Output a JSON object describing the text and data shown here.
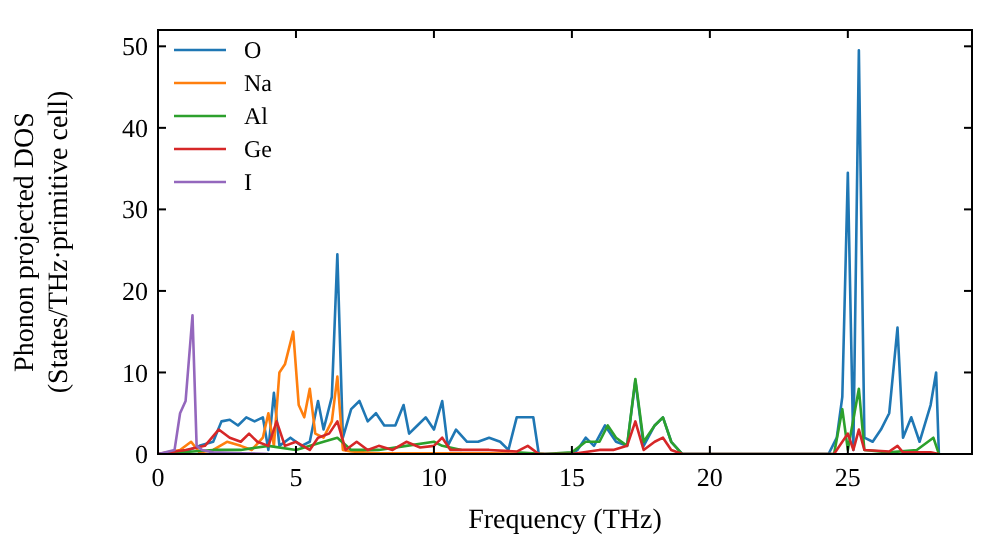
{
  "chart_data": {
    "type": "line",
    "xlabel": "Frequency (THz)",
    "ylabel": "Phonon projected DOS\n(States/THz·primitive cell)",
    "xlim": [
      0,
      29.5
    ],
    "ylim": [
      0,
      52
    ],
    "xticks": [
      0,
      5,
      10,
      15,
      20,
      25
    ],
    "yticks": [
      0,
      10,
      20,
      30,
      40,
      50
    ],
    "legend": "top left",
    "grid": false,
    "series": [
      {
        "name": "O",
        "color": "#1f77b4",
        "x": [
          0,
          1,
          1.5,
          2,
          2.3,
          2.6,
          2.9,
          3.2,
          3.5,
          3.8,
          4.0,
          4.2,
          4.4,
          4.8,
          5.2,
          5.5,
          5.8,
          6.0,
          6.3,
          6.5,
          6.7,
          7.0,
          7.3,
          7.6,
          7.9,
          8.2,
          8.6,
          8.9,
          9.1,
          9.4,
          9.7,
          10.0,
          10.3,
          10.5,
          10.8,
          11.2,
          11.6,
          12.0,
          12.4,
          12.7,
          13.0,
          13.3,
          13.6,
          13.8,
          15.0,
          15.2,
          15.5,
          15.8,
          16.2,
          16.6,
          17.0,
          17.3,
          17.6,
          18.0,
          18.3,
          18.6,
          19.0,
          24.3,
          24.6,
          24.8,
          25.0,
          25.2,
          25.4,
          25.6,
          25.9,
          26.2,
          26.5,
          26.8,
          27.0,
          27.3,
          27.6,
          28.0,
          28.2,
          28.3
        ],
        "values": [
          0,
          0.3,
          1,
          1.5,
          4,
          4.2,
          3.5,
          4.5,
          4,
          4.5,
          0.5,
          7.5,
          1,
          2,
          1,
          1.5,
          6.5,
          3,
          7,
          24.5,
          2,
          5.5,
          6.5,
          4,
          5,
          3.5,
          3.5,
          6,
          2.5,
          3.5,
          4.5,
          3,
          6.5,
          1,
          3,
          1.5,
          1.5,
          2,
          1.5,
          0.5,
          4.5,
          4.5,
          4.5,
          0,
          0,
          0.5,
          2,
          1,
          3.5,
          1.5,
          1,
          9,
          1,
          3.5,
          4.5,
          1.5,
          0,
          0,
          2,
          7,
          34.5,
          0.5,
          49.5,
          2,
          1.5,
          3,
          5,
          15.5,
          2,
          4.5,
          1.5,
          6,
          10,
          0
        ]
      },
      {
        "name": "Na",
        "color": "#ff7f0e",
        "x": [
          0,
          0.8,
          1.2,
          1.5,
          2,
          2.5,
          3,
          3.4,
          3.8,
          4.0,
          4.2,
          4.4,
          4.6,
          4.9,
          5.1,
          5.3,
          5.5,
          5.7,
          6.0,
          6.3,
          6.5,
          6.7,
          7,
          8,
          10,
          12,
          14
        ],
        "values": [
          0,
          0.5,
          1.5,
          0.2,
          0.5,
          1.5,
          1,
          0.5,
          2,
          5,
          1,
          10,
          11,
          15,
          6,
          4.5,
          8,
          2.5,
          2,
          4,
          9.5,
          0.5,
          0.3,
          0.1,
          0.1,
          0.1,
          0
        ]
      },
      {
        "name": "Al",
        "color": "#2ca02c",
        "x": [
          0,
          2,
          3,
          4,
          5,
          6,
          6.5,
          7,
          8,
          9,
          10,
          10.3,
          11,
          12,
          13,
          14,
          15,
          15.5,
          16,
          16.3,
          16.6,
          17.0,
          17.3,
          17.6,
          18.0,
          18.3,
          18.6,
          19,
          24.5,
          24.8,
          25.0,
          25.4,
          25.6,
          26.5,
          27.5,
          28.1,
          28.3
        ],
        "values": [
          0,
          0.5,
          0.5,
          1,
          0.5,
          1.5,
          2,
          0.5,
          0.5,
          1,
          1.5,
          1,
          0.5,
          null,
          0.2,
          0,
          0.2,
          1.5,
          1.5,
          3.5,
          2,
          1,
          9.2,
          1.5,
          3.5,
          4.5,
          1.5,
          0,
          0,
          5.5,
          0.5,
          8,
          0.5,
          0.2,
          0.5,
          2,
          0
        ]
      },
      {
        "name": "Ge",
        "color": "#d62728",
        "x": [
          0,
          1,
          1.7,
          2.2,
          2.6,
          3.0,
          3.3,
          3.6,
          4.0,
          4.3,
          4.6,
          5,
          5.5,
          5.8,
          6.2,
          6.5,
          6.8,
          7.2,
          7.6,
          8.0,
          8.5,
          9,
          9.5,
          10,
          10.3,
          10.6,
          11,
          12,
          13,
          13.4,
          13.8,
          15,
          16,
          16.5,
          17,
          17.3,
          17.6,
          18,
          18.3,
          18.6,
          19,
          24.5,
          25.0,
          25.2,
          25.4,
          25.6,
          26.5,
          26.8,
          27,
          28,
          28.3
        ],
        "values": [
          0,
          0.5,
          1,
          3,
          2,
          1.5,
          2.5,
          1.5,
          1,
          4,
          1,
          1.5,
          0.5,
          2,
          2.5,
          4,
          0.5,
          1.5,
          0.5,
          1,
          0.5,
          1.5,
          0.8,
          1,
          2,
          0.5,
          0.5,
          0.5,
          0.3,
          1,
          0,
          0,
          0.5,
          0.5,
          1,
          4,
          0.5,
          1.5,
          2,
          0.5,
          0,
          0,
          2.5,
          0.5,
          3,
          0.5,
          0.3,
          1,
          0.2,
          0.2,
          0
        ]
      },
      {
        "name": "I",
        "color": "#9467bd",
        "x": [
          0,
          0.6,
          0.8,
          1.0,
          1.25,
          1.4,
          1.6,
          2,
          3,
          4
        ],
        "values": [
          0,
          0.5,
          5,
          6.5,
          17,
          1,
          0.5,
          0.2,
          0.1,
          0
        ]
      }
    ]
  }
}
